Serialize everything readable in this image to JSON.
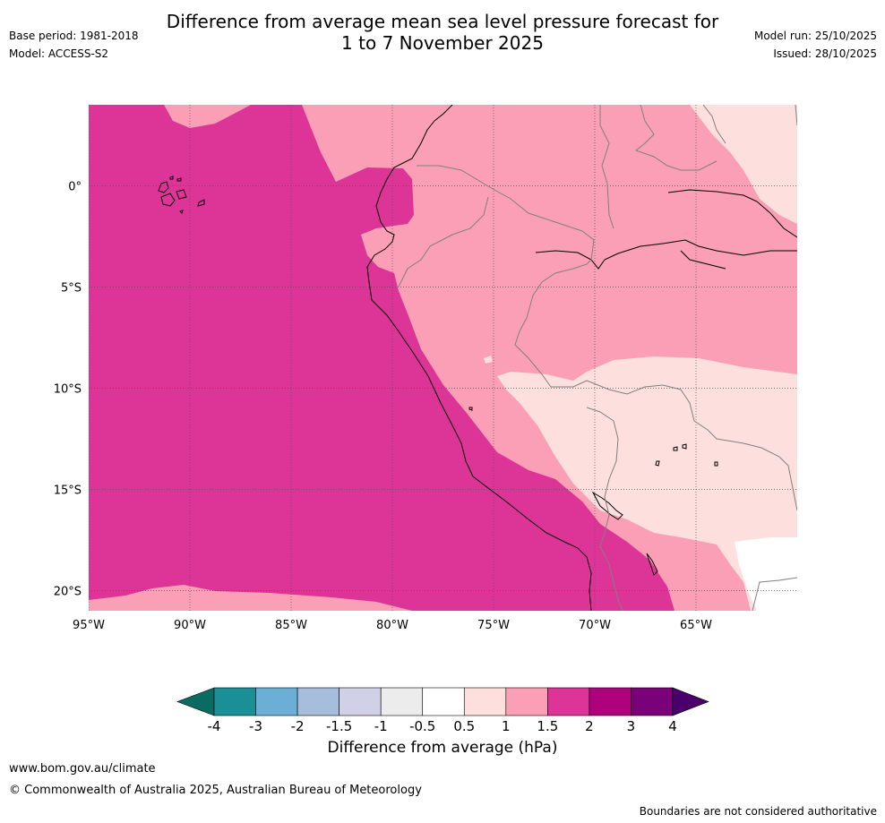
{
  "title": {
    "line1": "Difference from average mean sea level pressure forecast for",
    "line2": "1 to 7 November 2025"
  },
  "meta_left": {
    "base_period": "Base period: 1981-2018",
    "model": "Model: ACCESS-S2"
  },
  "meta_right": {
    "model_run": "Model run: 25/10/2025",
    "issued": "Issued: 28/10/2025"
  },
  "map": {
    "lon_range": [
      -95,
      -60
    ],
    "lat_range": [
      -21,
      4
    ],
    "lon_ticks": [
      {
        "value": -95,
        "label": "95°W"
      },
      {
        "value": -90,
        "label": "90°W"
      },
      {
        "value": -85,
        "label": "85°W"
      },
      {
        "value": -80,
        "label": "80°W"
      },
      {
        "value": -75,
        "label": "75°W"
      },
      {
        "value": -70,
        "label": "70°W"
      },
      {
        "value": -65,
        "label": "65°W"
      }
    ],
    "lat_ticks": [
      {
        "value": 0,
        "label": "0°"
      },
      {
        "value": -5,
        "label": "5°S"
      },
      {
        "value": -10,
        "label": "10°S"
      },
      {
        "value": -15,
        "label": "15°S"
      },
      {
        "value": -20,
        "label": "20°S"
      }
    ],
    "colors": {
      "ocean_band_2": "#dd3497",
      "band_1_5": "#fa9fb5",
      "band_1": "#fde0dd",
      "band_0_5": "#ffffff",
      "coast": "#000000",
      "border": "#808080",
      "grid": "#555555"
    }
  },
  "colorbar": {
    "title": "Difference from average (hPa)",
    "ticks": [
      "-4",
      "-3",
      "-2",
      "-1.5",
      "-1",
      "-0.5",
      "0.5",
      "1",
      "1.5",
      "2",
      "3",
      "4"
    ],
    "colors": [
      "#1a9096",
      "#6baed6",
      "#a6bddb",
      "#d0d1e6",
      "#ececec",
      "#ffffff",
      "#fde0dd",
      "#fa9fb5",
      "#dd3497",
      "#ae017e",
      "#7a0177"
    ],
    "low_extend_color": "#0a6b63",
    "high_extend_color": "#49006a"
  },
  "footer": {
    "url": "www.bom.gov.au/climate",
    "copyright": "© Commonwealth of Australia 2025, Australian Bureau of Meteorology",
    "note": "Boundaries are not considered authoritative"
  }
}
